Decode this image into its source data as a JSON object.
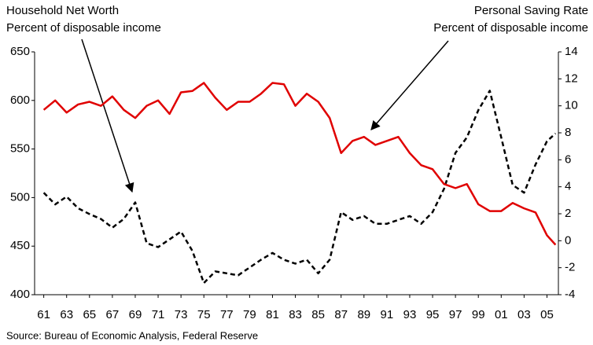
{
  "chart_data": {
    "type": "line",
    "ylabel": "Percent of disposable income",
    "y2label": "Percent of disposable income",
    "source": "Source: Bureau of Economic Analysis, Federal Reserve",
    "x": [
      1961,
      1962,
      1963,
      1964,
      1965,
      1966,
      1967,
      1968,
      1969,
      1970,
      1971,
      1972,
      1973,
      1974,
      1975,
      1976,
      1977,
      1978,
      1979,
      1980,
      1981,
      1982,
      1983,
      1984,
      1985,
      1986,
      1987,
      1988,
      1989,
      1990,
      1991,
      1992,
      1993,
      1994,
      1995,
      1996,
      1997,
      1998,
      1999,
      2000,
      2001,
      2002,
      2003,
      2004,
      2005,
      2005.75
    ],
    "xlim": [
      1960.2,
      2006
    ],
    "xticks": [
      {
        "value": 1961,
        "label": "61"
      },
      {
        "value": 1963,
        "label": "63"
      },
      {
        "value": 1965,
        "label": "65"
      },
      {
        "value": 1967,
        "label": "67"
      },
      {
        "value": 1969,
        "label": "69"
      },
      {
        "value": 1971,
        "label": "71"
      },
      {
        "value": 1973,
        "label": "73"
      },
      {
        "value": 1975,
        "label": "75"
      },
      {
        "value": 1977,
        "label": "77"
      },
      {
        "value": 1979,
        "label": "79"
      },
      {
        "value": 1981,
        "label": "81"
      },
      {
        "value": 1983,
        "label": "83"
      },
      {
        "value": 1985,
        "label": "85"
      },
      {
        "value": 1987,
        "label": "87"
      },
      {
        "value": 1989,
        "label": "89"
      },
      {
        "value": 1991,
        "label": "91"
      },
      {
        "value": 1993,
        "label": "93"
      },
      {
        "value": 1995,
        "label": "95"
      },
      {
        "value": 1997,
        "label": "97"
      },
      {
        "value": 1999,
        "label": "99"
      },
      {
        "value": 2001,
        "label": "01"
      },
      {
        "value": 2003,
        "label": "03"
      },
      {
        "value": 2005,
        "label": "05"
      }
    ],
    "ylim": [
      400,
      650
    ],
    "yticks": [
      400,
      450,
      500,
      550,
      600,
      650
    ],
    "y2lim": [
      -4,
      14
    ],
    "y2ticks": [
      -4,
      -2,
      0,
      2,
      4,
      6,
      8,
      10,
      12,
      14
    ],
    "grid": false,
    "series": [
      {
        "name": "Household Net Worth",
        "color": "#000000",
        "dashed": true,
        "axis": "y",
        "values": [
          505,
          493,
          501,
          489,
          483,
          478,
          469,
          478,
          495,
          453,
          449,
          457,
          465,
          445,
          412,
          424,
          422,
          420,
          428,
          436,
          443,
          436,
          432,
          436,
          422,
          436,
          485,
          477,
          481,
          473,
          473,
          477,
          481,
          473,
          485,
          509,
          546,
          562,
          590,
          610,
          562,
          513,
          505,
          534,
          558,
          566
        ]
      },
      {
        "name": "Personal Saving Rate",
        "color": "#e00000",
        "dashed": false,
        "axis": "y2",
        "values": [
          9.7,
          10.4,
          9.5,
          10.1,
          10.3,
          10.0,
          10.7,
          9.7,
          9.1,
          10.0,
          10.4,
          9.4,
          11.0,
          11.1,
          11.7,
          10.6,
          9.7,
          10.3,
          10.3,
          10.9,
          11.7,
          11.6,
          10.0,
          10.9,
          10.3,
          9.1,
          6.5,
          7.4,
          7.7,
          7.1,
          7.4,
          7.7,
          6.5,
          5.6,
          5.3,
          4.2,
          3.9,
          4.2,
          2.7,
          2.2,
          2.2,
          2.8,
          2.4,
          2.1,
          0.4,
          -0.3
        ]
      }
    ]
  }
}
